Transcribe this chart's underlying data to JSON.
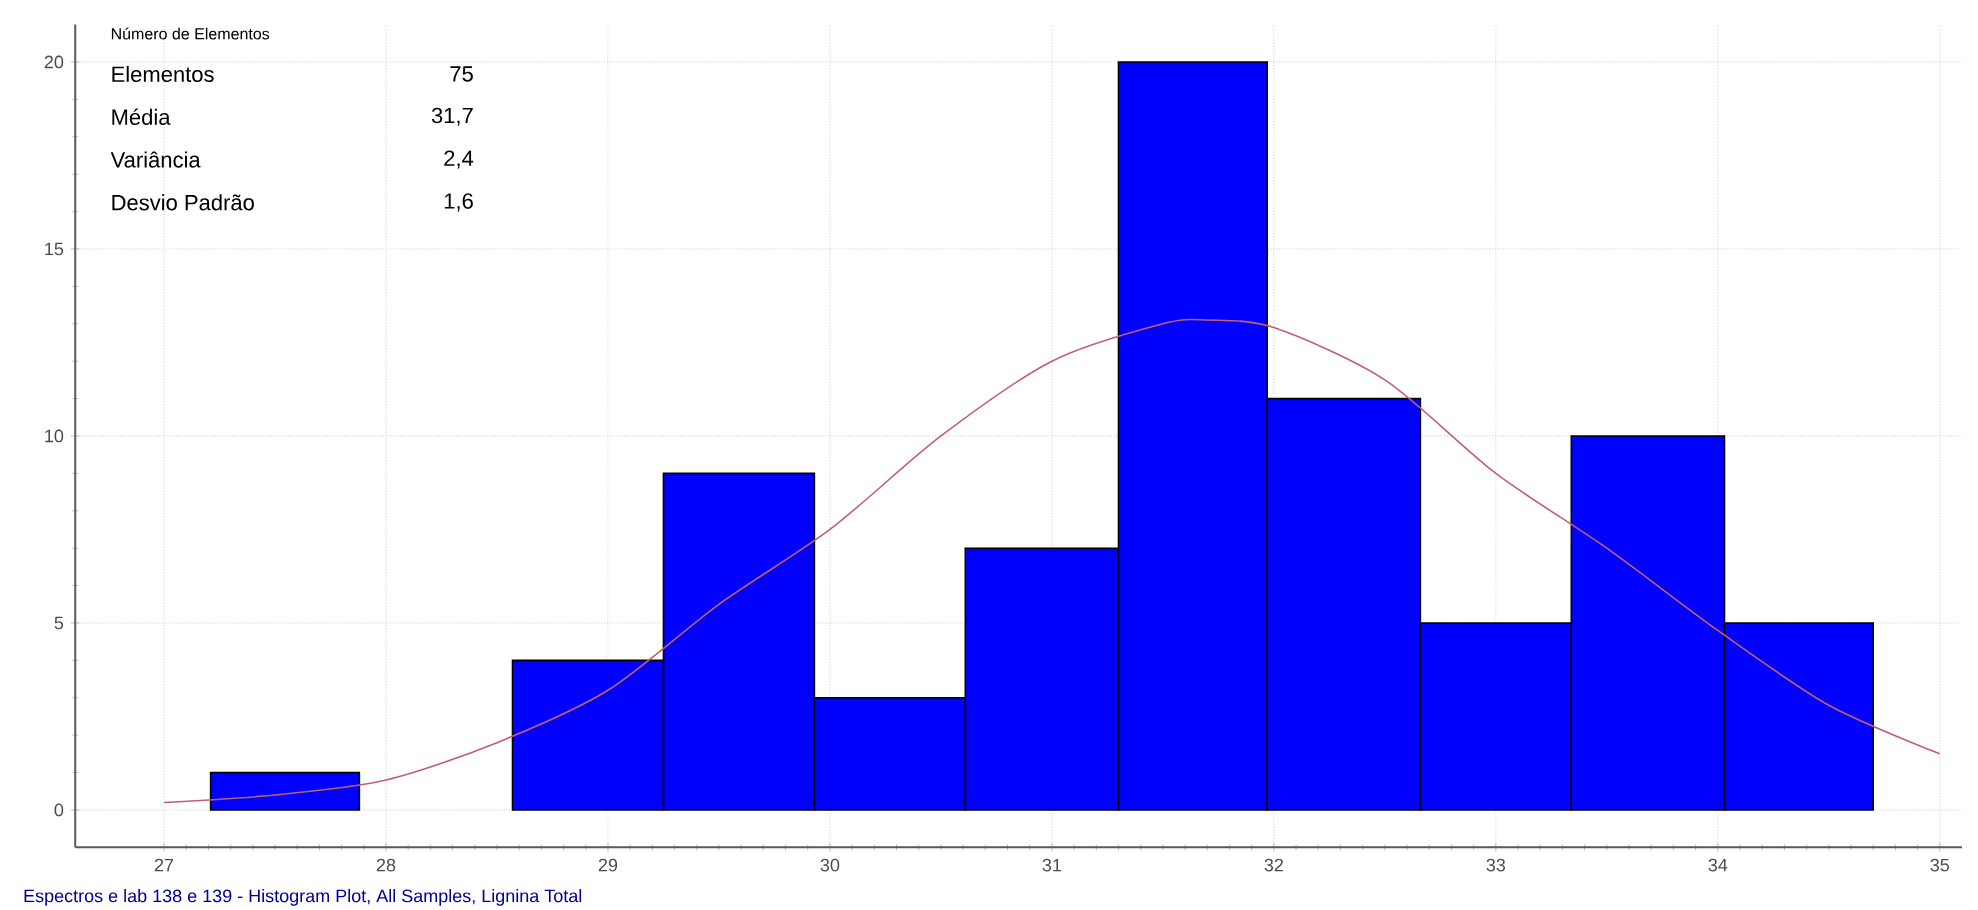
{
  "chart_data": {
    "type": "histogram",
    "bins": [
      27.21,
      27.88,
      28.57,
      29.25,
      29.93,
      30.61,
      31.3,
      31.97,
      32.66,
      33.34,
      34.03,
      34.7
    ],
    "values": [
      1,
      0,
      4,
      9,
      3,
      7,
      20,
      11,
      5,
      10,
      5
    ],
    "color": "#0000ff",
    "series": [
      {
        "type": "line",
        "color": "#c06070",
        "x": [
          27,
          27.5,
          28,
          28.5,
          29,
          29.5,
          30,
          30.5,
          31,
          31.5,
          31.7,
          32,
          32.5,
          33,
          33.5,
          34,
          34.5,
          35
        ],
        "values": [
          0.2,
          0.4,
          0.8,
          1.8,
          3.2,
          5.5,
          7.5,
          10,
          12,
          13,
          13.1,
          12.9,
          11.5,
          9,
          7,
          4.8,
          2.8,
          1.5
        ]
      }
    ],
    "xlim": [
      26.6,
      35.1
    ],
    "ylim": [
      -1,
      21
    ],
    "xticks": [
      27,
      28,
      29,
      30,
      31,
      32,
      33,
      34,
      35
    ],
    "yticks": [
      0,
      5,
      10,
      15,
      20
    ],
    "grid": true,
    "annotations": [
      "Número de Elementos",
      "Elementos",
      "75",
      "Média",
      "31,7",
      "Variância",
      "2,4",
      "Desvio Padrão",
      "1,6",
      "Espectros e lab 138 e 139 - Histogram Plot, All Samples, Lignina Total"
    ]
  }
}
